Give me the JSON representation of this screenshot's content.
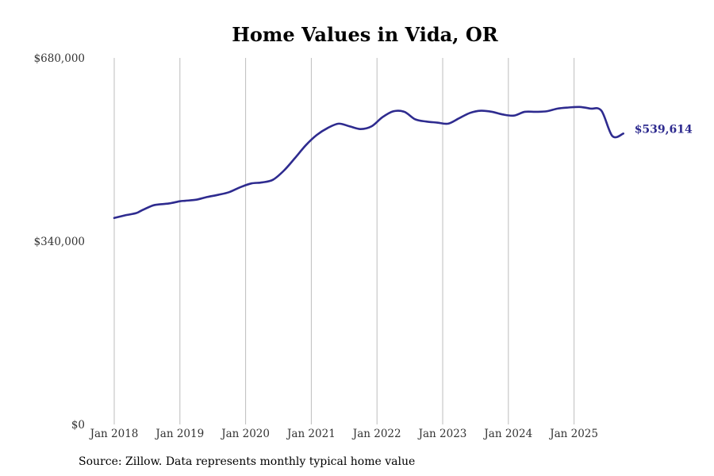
{
  "chart_data": {
    "type": "line",
    "title": "Home Values in Vida, OR",
    "xlabel": "",
    "ylabel": "",
    "ylim": [
      0,
      680000
    ],
    "xlim": [
      "2018-01",
      "2025-10"
    ],
    "y_ticks": [
      {
        "value": 0,
        "label": "$0"
      },
      {
        "value": 340000,
        "label": "$340,000"
      },
      {
        "value": 680000,
        "label": "$680,000"
      }
    ],
    "x_ticks": [
      {
        "value": "2018-01",
        "label": "Jan 2018"
      },
      {
        "value": "2019-01",
        "label": "Jan 2019"
      },
      {
        "value": "2020-01",
        "label": "Jan 2020"
      },
      {
        "value": "2021-01",
        "label": "Jan 2021"
      },
      {
        "value": "2022-01",
        "label": "Jan 2022"
      },
      {
        "value": "2023-01",
        "label": "Jan 2023"
      },
      {
        "value": "2024-01",
        "label": "Jan 2024"
      },
      {
        "value": "2025-01",
        "label": "Jan 2025"
      }
    ],
    "grid": {
      "vertical": true,
      "horizontal": false
    },
    "series": [
      {
        "color": "#2e2b8f",
        "end_label": "$539,614",
        "x": [
          "2018-01",
          "2018-03",
          "2018-05",
          "2018-06",
          "2018-08",
          "2018-09",
          "2018-11",
          "2019-01",
          "2019-02",
          "2019-04",
          "2019-06",
          "2019-08",
          "2019-10",
          "2019-12",
          "2020-02",
          "2020-04",
          "2020-06",
          "2020-08",
          "2020-10",
          "2020-12",
          "2021-02",
          "2021-04",
          "2021-06",
          "2021-08",
          "2021-10",
          "2021-12",
          "2022-02",
          "2022-04",
          "2022-06",
          "2022-08",
          "2022-10",
          "2022-12",
          "2023-02",
          "2023-04",
          "2023-06",
          "2023-08",
          "2023-10",
          "2023-12",
          "2024-02",
          "2024-04",
          "2024-06",
          "2024-08",
          "2024-10",
          "2024-12",
          "2025-02",
          "2025-04",
          "2025-06",
          "2025-08",
          "2025-10"
        ],
        "values": [
          383000,
          388000,
          392000,
          397000,
          406000,
          408000,
          410000,
          414000,
          415000,
          417000,
          422000,
          426000,
          431000,
          440000,
          447000,
          449000,
          454000,
          471000,
          494000,
          518000,
          537000,
          550000,
          558000,
          553000,
          548000,
          553000,
          570000,
          581000,
          580000,
          566000,
          562000,
          560000,
          558000,
          568000,
          578000,
          582000,
          580000,
          575000,
          573000,
          580000,
          580000,
          581000,
          586000,
          588000,
          589000,
          586000,
          582000,
          535000,
          539614
        ]
      }
    ]
  },
  "source_text": "Source: Zillow. Data represents monthly typical home value"
}
